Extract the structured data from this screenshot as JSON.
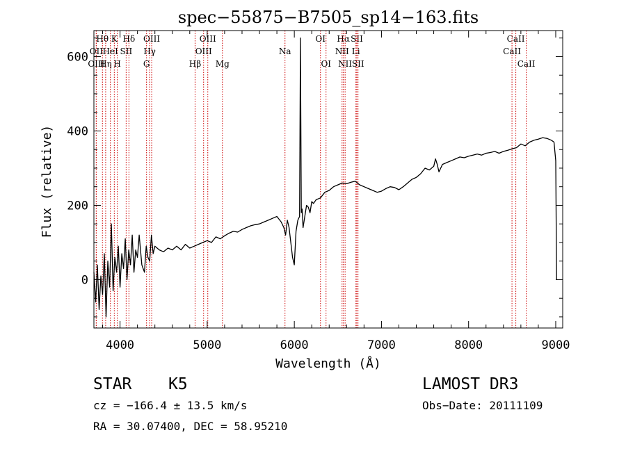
{
  "chart_data": {
    "type": "line",
    "title": "spec−55875−B7505_sp14−163.fits",
    "xlabel": "Wavelength (Å)",
    "ylabel": "Flux (relative)",
    "xlim": [
      3700,
      9080
    ],
    "ylim": [
      -130,
      670
    ],
    "x_ticks": [
      4000,
      5000,
      6000,
      7000,
      8000,
      9000
    ],
    "x_tick_labels": [
      "4000",
      "5000",
      "6000",
      "7000",
      "8000",
      "9000"
    ],
    "y_ticks": [
      0,
      200,
      400,
      600
    ],
    "y_tick_labels": [
      "0",
      "200",
      "400",
      "600"
    ],
    "grid": false,
    "series": [
      {
        "name": "flux",
        "x": [
          3700,
          3720,
          3740,
          3760,
          3780,
          3800,
          3820,
          3840,
          3860,
          3880,
          3900,
          3920,
          3940,
          3960,
          3980,
          4000,
          4020,
          4040,
          4060,
          4080,
          4100,
          4120,
          4140,
          4160,
          4180,
          4200,
          4220,
          4250,
          4280,
          4300,
          4320,
          4340,
          4360,
          4380,
          4400,
          4450,
          4500,
          4550,
          4600,
          4650,
          4700,
          4750,
          4800,
          4850,
          4900,
          4950,
          5000,
          5050,
          5100,
          5150,
          5200,
          5250,
          5300,
          5350,
          5400,
          5450,
          5500,
          5550,
          5600,
          5650,
          5700,
          5750,
          5800,
          5850,
          5880,
          5900,
          5920,
          5940,
          5960,
          5980,
          6000,
          6020,
          6040,
          6060,
          6070,
          6080,
          6090,
          6100,
          6120,
          6140,
          6160,
          6180,
          6200,
          6220,
          6250,
          6300,
          6350,
          6400,
          6450,
          6500,
          6550,
          6600,
          6650,
          6700,
          6750,
          6800,
          6850,
          6900,
          6950,
          7000,
          7050,
          7100,
          7150,
          7200,
          7250,
          7300,
          7350,
          7400,
          7450,
          7500,
          7550,
          7600,
          7620,
          7640,
          7660,
          7700,
          7750,
          7800,
          7850,
          7900,
          7950,
          8000,
          8050,
          8100,
          8150,
          8200,
          8250,
          8300,
          8350,
          8400,
          8450,
          8500,
          8550,
          8600,
          8650,
          8700,
          8750,
          8800,
          8850,
          8900,
          8950,
          8980,
          9000,
          9010
        ],
        "y": [
          20,
          -60,
          40,
          -80,
          10,
          -40,
          70,
          -100,
          50,
          -20,
          150,
          -30,
          60,
          20,
          90,
          -20,
          70,
          30,
          110,
          0,
          80,
          40,
          120,
          20,
          80,
          60,
          120,
          40,
          20,
          90,
          60,
          50,
          120,
          70,
          90,
          80,
          75,
          85,
          80,
          90,
          80,
          95,
          85,
          90,
          95,
          100,
          105,
          100,
          115,
          110,
          118,
          125,
          130,
          128,
          135,
          140,
          145,
          148,
          150,
          155,
          160,
          165,
          170,
          155,
          140,
          120,
          160,
          140,
          100,
          60,
          40,
          130,
          160,
          170,
          650,
          180,
          190,
          140,
          170,
          200,
          195,
          180,
          210,
          205,
          215,
          220,
          235,
          240,
          250,
          255,
          260,
          258,
          262,
          265,
          255,
          250,
          245,
          240,
          235,
          238,
          245,
          250,
          248,
          242,
          250,
          260,
          270,
          275,
          285,
          300,
          295,
          305,
          325,
          310,
          290,
          310,
          315,
          320,
          325,
          330,
          328,
          332,
          335,
          338,
          335,
          340,
          342,
          345,
          340,
          345,
          348,
          352,
          355,
          365,
          360,
          370,
          375,
          378,
          382,
          380,
          375,
          370,
          320,
          0
        ]
      }
    ],
    "line_markers": [
      {
        "label": "Hθ",
        "x": 3798,
        "row": 0
      },
      {
        "label": "K",
        "x": 3934,
        "row": 0
      },
      {
        "label": "Hδ",
        "x": 4102,
        "row": 0
      },
      {
        "label": "OIII",
        "x": 4363,
        "row": 0
      },
      {
        "label": "OIII",
        "x": 5007,
        "row": 0
      },
      {
        "label": "OI",
        "x": 6300,
        "row": 0
      },
      {
        "label": "Hα",
        "x": 6563,
        "row": 0
      },
      {
        "label": "SII",
        "x": 6717,
        "row": 0
      },
      {
        "label": "CaII",
        "x": 8542,
        "row": 0
      },
      {
        "label": "OII",
        "x": 3727,
        "row": 1
      },
      {
        "label": "HeI",
        "x": 3889,
        "row": 1
      },
      {
        "label": "SII",
        "x": 4070,
        "row": 1
      },
      {
        "label": "Hγ",
        "x": 4340,
        "row": 1
      },
      {
        "label": "OIII",
        "x": 4959,
        "row": 1
      },
      {
        "label": "Na",
        "x": 5893,
        "row": 1
      },
      {
        "label": "NII",
        "x": 6548,
        "row": 1
      },
      {
        "label": "Li",
        "x": 6707,
        "row": 1
      },
      {
        "label": "CaII",
        "x": 8498,
        "row": 1
      },
      {
        "label": "OIII",
        "x": 3727,
        "row": 2
      },
      {
        "label": "Hη",
        "x": 3835,
        "row": 2
      },
      {
        "label": "H",
        "x": 3968,
        "row": 2
      },
      {
        "label": "G",
        "x": 4304,
        "row": 2
      },
      {
        "label": "Hβ",
        "x": 4861,
        "row": 2
      },
      {
        "label": "Mg",
        "x": 5175,
        "row": 2
      },
      {
        "label": "OI",
        "x": 6364,
        "row": 2
      },
      {
        "label": "NII",
        "x": 6583,
        "row": 2
      },
      {
        "label": "SII",
        "x": 6731,
        "row": 2
      },
      {
        "label": "CaII",
        "x": 8662,
        "row": 2
      }
    ],
    "colors": {
      "spectrum": "#000000",
      "markers": "#cc0000",
      "axes": "#000000"
    }
  },
  "info": {
    "object_class": "STAR",
    "subclass": "K5",
    "survey": "LAMOST DR3",
    "redshift_line": "cz = −166.4 ± 13.5 km/s",
    "obs_date": "Obs−Date: 20111109",
    "coords_line": "RA =  30.07400, DEC =  58.95210"
  }
}
